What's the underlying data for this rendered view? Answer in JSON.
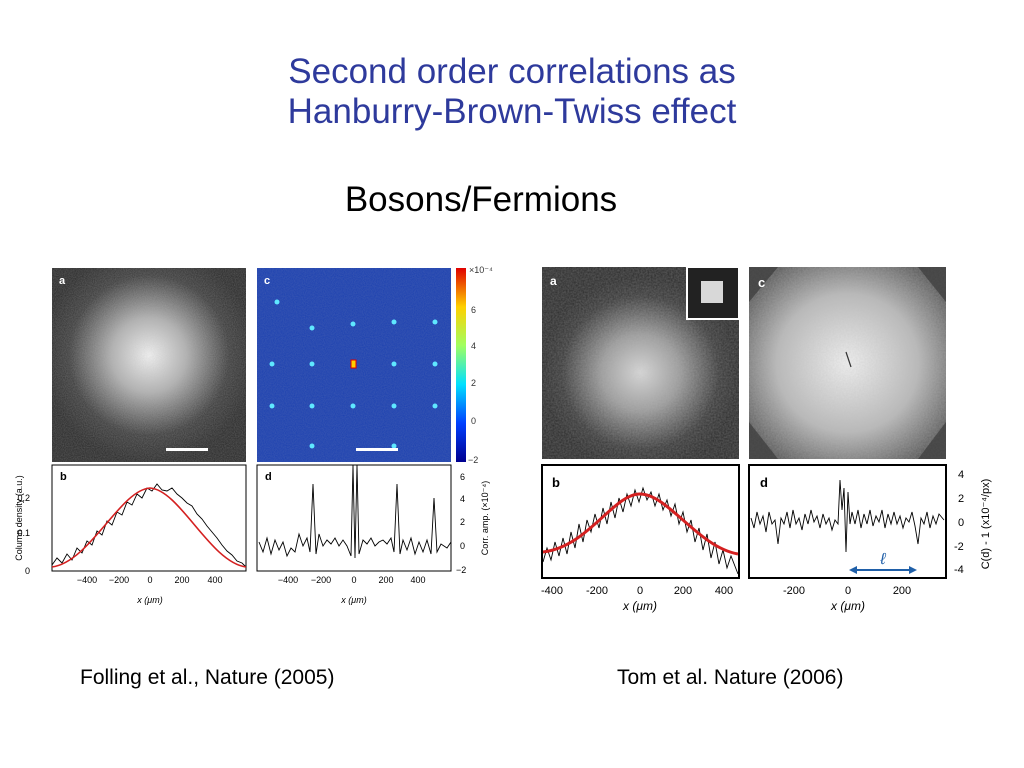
{
  "slide": {
    "title_line1": "Second order correlations as",
    "title_line2": "Hanburry-Brown-Twiss effect",
    "subtitle": "Bosons/Fermions",
    "caption_left": "Folling et al.,  Nature (2005)",
    "caption_right": "Tom et al. Nature (2006)"
  },
  "colors": {
    "title": "#2e3a9c",
    "fit_line": "#d42020",
    "map_bg": "#1a3fb0",
    "arrow": "#1f5fa8"
  },
  "figure_left": {
    "panel_a": {
      "label": "a"
    },
    "panel_c": {
      "label": "c",
      "colorbar_exp": "×10⁻⁴",
      "colorbar_ticks": [
        "6",
        "4",
        "2",
        "0",
        "−2"
      ]
    },
    "panel_b": {
      "label": "b",
      "ylabel": "Column density (a.u.)",
      "yticks": [
        "0.2",
        "0.1",
        "0"
      ],
      "xticks": [
        "−400",
        "−200",
        "0",
        "200",
        "400"
      ],
      "xlabel": "x (μm)"
    },
    "panel_d": {
      "label": "d",
      "ylabel": "Corr. amp. (×10⁻⁴)",
      "yticks": [
        "6",
        "4",
        "2",
        "0",
        "−2"
      ],
      "xticks": [
        "−400",
        "−200",
        "0",
        "200",
        "400"
      ],
      "xlabel": "x (μm)"
    }
  },
  "figure_right": {
    "panel_a": {
      "label": "a"
    },
    "panel_c": {
      "label": "c"
    },
    "panel_b": {
      "label": "b",
      "xticks": [
        "-400",
        "-200",
        "0",
        "200",
        "400"
      ],
      "xlabel": "x (μm)"
    },
    "panel_d": {
      "label": "d",
      "xticks": [
        "-200",
        "0",
        "200"
      ],
      "yticks": [
        "4",
        "2",
        "0",
        "-2",
        "-4"
      ],
      "ylabel": "C(d) - 1  (x10⁻⁴/px)",
      "xlabel": "x (μm)",
      "arrow_label": "ℓ"
    }
  }
}
